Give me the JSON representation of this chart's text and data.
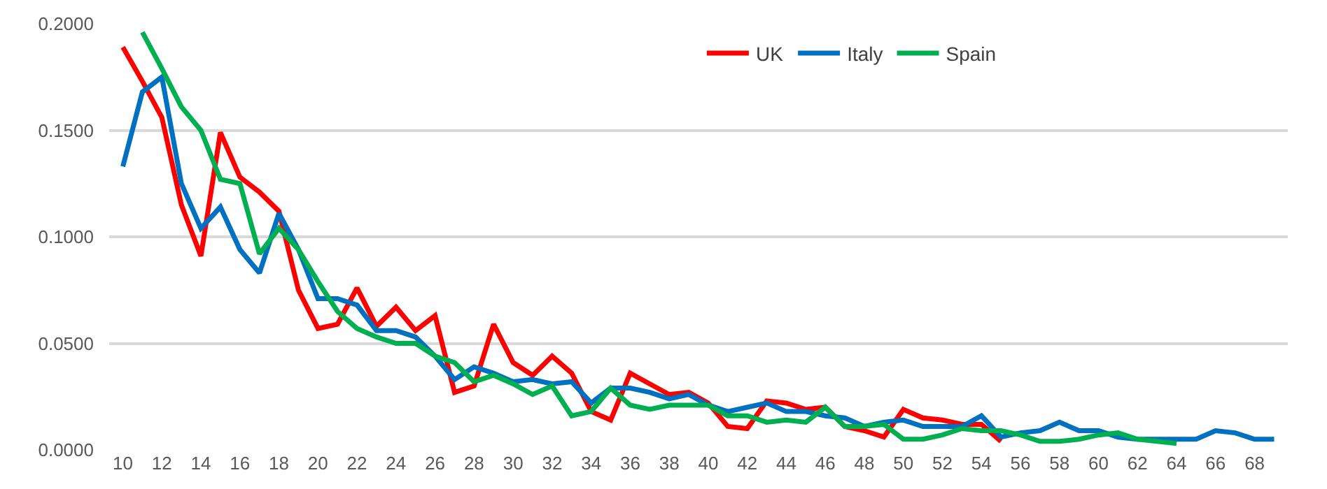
{
  "chart_data": {
    "type": "line",
    "x": [
      10,
      11,
      12,
      13,
      14,
      15,
      16,
      17,
      18,
      19,
      20,
      21,
      22,
      23,
      24,
      25,
      26,
      27,
      28,
      29,
      30,
      31,
      32,
      33,
      34,
      35,
      36,
      37,
      38,
      39,
      40,
      41,
      42,
      43,
      44,
      45,
      46,
      47,
      48,
      49,
      50,
      51,
      52,
      53,
      54,
      55,
      56,
      57,
      58,
      59,
      60,
      61,
      62,
      63,
      64,
      65,
      66,
      67,
      68,
      69
    ],
    "series": [
      {
        "name": "UK",
        "color": "#ff0000",
        "values": [
          0.189,
          0.173,
          0.156,
          0.115,
          0.091,
          0.149,
          0.128,
          0.121,
          0.112,
          0.075,
          0.057,
          0.059,
          0.076,
          0.058,
          0.067,
          0.056,
          0.063,
          0.027,
          0.03,
          0.059,
          0.041,
          0.035,
          0.044,
          0.036,
          0.018,
          0.014,
          0.036,
          0.031,
          0.026,
          0.027,
          0.022,
          0.011,
          0.01,
          0.023,
          0.022,
          0.019,
          0.02,
          0.011,
          0.009,
          0.006,
          0.019,
          0.015,
          0.014,
          0.012,
          0.012,
          0.004,
          null,
          null,
          null,
          null,
          null,
          null,
          null,
          null,
          null,
          null,
          null,
          null,
          null,
          null
        ]
      },
      {
        "name": "Italy",
        "color": "#0070c0",
        "values": [
          0.133,
          0.168,
          0.175,
          0.125,
          0.104,
          0.114,
          0.094,
          0.083,
          0.111,
          0.094,
          0.071,
          0.071,
          0.068,
          0.056,
          0.056,
          0.053,
          0.044,
          0.033,
          0.039,
          0.036,
          0.032,
          0.033,
          0.031,
          0.032,
          0.022,
          0.029,
          0.029,
          0.027,
          0.024,
          0.026,
          0.021,
          0.018,
          0.02,
          0.022,
          0.018,
          0.018,
          0.016,
          0.015,
          0.011,
          0.013,
          0.014,
          0.011,
          0.011,
          0.011,
          0.016,
          0.006,
          0.008,
          0.009,
          0.013,
          0.009,
          0.009,
          0.006,
          0.005,
          0.005,
          0.005,
          0.005,
          0.009,
          0.008,
          0.005,
          0.005
        ]
      },
      {
        "name": "Spain",
        "color": "#00b050",
        "values": [
          null,
          0.196,
          0.179,
          0.161,
          0.15,
          0.127,
          0.125,
          0.092,
          0.104,
          0.094,
          0.079,
          0.065,
          0.057,
          0.053,
          0.05,
          0.05,
          0.044,
          0.041,
          0.032,
          0.035,
          0.031,
          0.026,
          0.03,
          0.016,
          0.018,
          0.029,
          0.021,
          0.019,
          0.021,
          0.021,
          0.021,
          0.016,
          0.016,
          0.013,
          0.014,
          0.013,
          0.02,
          0.011,
          0.011,
          0.012,
          0.005,
          0.005,
          0.007,
          0.01,
          0.009,
          0.009,
          0.007,
          0.004,
          0.004,
          0.005,
          0.007,
          0.008,
          0.005,
          0.004,
          0.003,
          null,
          null,
          null,
          null,
          null
        ]
      }
    ],
    "xlim": [
      9.3,
      69.7
    ],
    "xticks": [
      10,
      12,
      14,
      16,
      18,
      20,
      22,
      24,
      26,
      28,
      30,
      32,
      34,
      36,
      38,
      40,
      42,
      44,
      46,
      48,
      50,
      52,
      54,
      56,
      58,
      60,
      62,
      64,
      66,
      68
    ],
    "ylim": [
      0,
      0.2
    ],
    "yticks": [
      {
        "value": 0,
        "label": "0.0000"
      },
      {
        "value": 0.05,
        "label": "0.0500"
      },
      {
        "value": 0.1,
        "label": "0.1000"
      },
      {
        "value": 0.15,
        "label": "0.1500"
      },
      {
        "value": 0.2,
        "label": "0.2000"
      }
    ],
    "grid": "y",
    "legend": "top",
    "marker": "none",
    "line_style": "solid"
  }
}
